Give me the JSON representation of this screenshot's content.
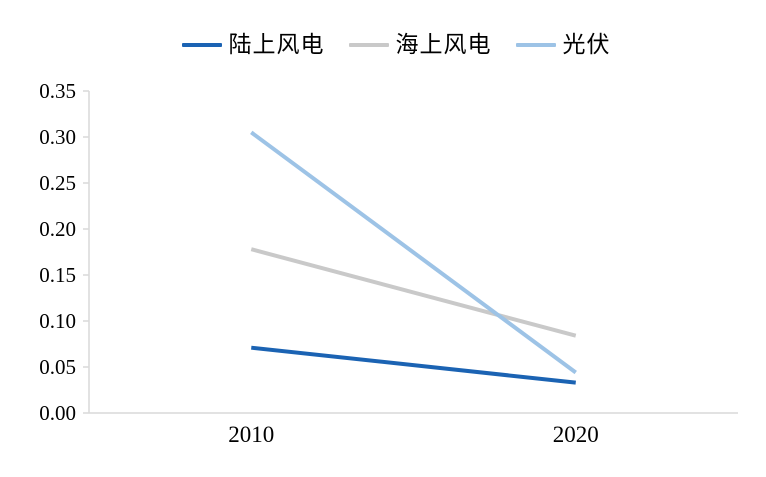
{
  "chart_data": {
    "type": "line",
    "title": "",
    "xlabel": "",
    "ylabel": "",
    "categories": [
      "2010",
      "2020"
    ],
    "series": [
      {
        "name": "陆上风电",
        "color": "#1B63B3",
        "values": [
          0.071,
          0.033
        ]
      },
      {
        "name": "海上风电",
        "color": "#C9C9C9",
        "values": [
          0.178,
          0.084
        ]
      },
      {
        "name": "光伏",
        "color": "#9DC3E6",
        "values": [
          0.305,
          0.044
        ]
      }
    ],
    "ylim": [
      0.0,
      0.35
    ],
    "ytick_labels": [
      "0.00",
      "0.05",
      "0.10",
      "0.15",
      "0.20",
      "0.25",
      "0.30",
      "0.35"
    ],
    "grid": false,
    "legend_position": "top",
    "axis_color": "#D9D9D9",
    "text_color": "#000000",
    "background_color": "#FFFFFF"
  }
}
